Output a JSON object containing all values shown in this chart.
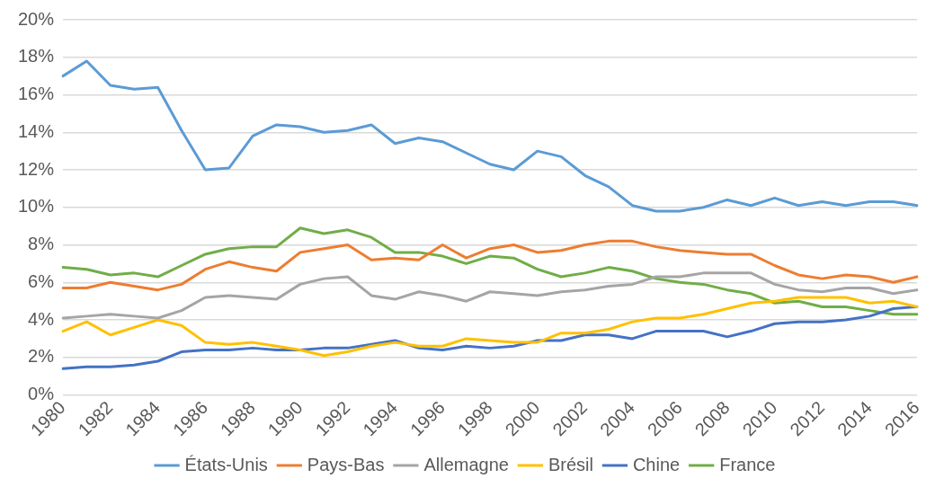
{
  "chart_data": {
    "type": "line",
    "categories": [
      "1980",
      null,
      "1982",
      null,
      "1984",
      null,
      "1986",
      null,
      "1988",
      null,
      "1990",
      null,
      "1992",
      null,
      "1994",
      null,
      "1996",
      null,
      "1998",
      null,
      "2000",
      null,
      "2002",
      null,
      "2004",
      null,
      "2006",
      null,
      "2008",
      null,
      "2010",
      null,
      "2012",
      null,
      "2014",
      null,
      "2016"
    ],
    "series": [
      {
        "name": "États-Unis",
        "color": "#5b9bd5",
        "values": [
          17.0,
          17.8,
          16.5,
          16.3,
          16.4,
          14.1,
          12.0,
          12.1,
          13.8,
          14.4,
          14.3,
          14.0,
          14.1,
          14.4,
          13.4,
          13.7,
          13.5,
          12.9,
          12.3,
          12.0,
          13.0,
          12.7,
          11.7,
          11.1,
          10.1,
          9.8,
          9.8,
          10.0,
          10.4,
          10.1,
          10.5,
          10.1,
          10.3,
          10.1,
          10.3,
          10.3,
          10.1
        ]
      },
      {
        "name": "Pays-Bas",
        "color": "#ed7d31",
        "values": [
          5.7,
          5.7,
          6.0,
          5.8,
          5.6,
          5.9,
          6.7,
          7.1,
          6.8,
          6.6,
          7.6,
          7.8,
          8.0,
          7.2,
          7.3,
          7.2,
          8.0,
          7.3,
          7.8,
          8.0,
          7.6,
          7.7,
          8.0,
          8.2,
          8.2,
          7.9,
          7.7,
          7.6,
          7.5,
          7.5,
          6.9,
          6.4,
          6.2,
          6.4,
          6.3,
          6.0,
          6.3
        ]
      },
      {
        "name": "Allemagne",
        "color": "#a5a5a5",
        "values": [
          4.1,
          4.2,
          4.3,
          4.2,
          4.1,
          4.5,
          5.2,
          5.3,
          5.2,
          5.1,
          5.9,
          6.2,
          6.3,
          5.3,
          5.1,
          5.5,
          5.3,
          5.0,
          5.5,
          5.4,
          5.3,
          5.5,
          5.6,
          5.8,
          5.9,
          6.3,
          6.3,
          6.5,
          6.5,
          6.5,
          5.9,
          5.6,
          5.5,
          5.7,
          5.7,
          5.4,
          5.6
        ]
      },
      {
        "name": "Brésil",
        "color": "#ffc000",
        "values": [
          3.4,
          3.9,
          3.2,
          3.6,
          4.0,
          3.7,
          2.8,
          2.7,
          2.8,
          2.6,
          2.4,
          2.1,
          2.3,
          2.6,
          2.8,
          2.6,
          2.6,
          3.0,
          2.9,
          2.8,
          2.8,
          3.3,
          3.3,
          3.5,
          3.9,
          4.1,
          4.1,
          4.3,
          4.6,
          4.9,
          5.0,
          5.2,
          5.2,
          5.2,
          4.9,
          5.0,
          4.7
        ]
      },
      {
        "name": "Chine",
        "color": "#4472c4",
        "values": [
          1.4,
          1.5,
          1.5,
          1.6,
          1.8,
          2.3,
          2.4,
          2.4,
          2.5,
          2.4,
          2.4,
          2.5,
          2.5,
          2.7,
          2.9,
          2.5,
          2.4,
          2.6,
          2.5,
          2.6,
          2.9,
          2.9,
          3.2,
          3.2,
          3.0,
          3.4,
          3.4,
          3.4,
          3.1,
          3.4,
          3.8,
          3.9,
          3.9,
          4.0,
          4.2,
          4.6,
          4.7
        ]
      },
      {
        "name": "France",
        "color": "#70ad47",
        "values": [
          6.8,
          6.7,
          6.4,
          6.5,
          6.3,
          6.9,
          7.5,
          7.8,
          7.9,
          7.9,
          8.9,
          8.6,
          8.8,
          8.4,
          7.6,
          7.6,
          7.4,
          7.0,
          7.4,
          7.3,
          6.7,
          6.3,
          6.5,
          6.8,
          6.6,
          6.2,
          6.0,
          5.9,
          5.6,
          5.4,
          4.9,
          5.0,
          4.7,
          4.7,
          4.5,
          4.3,
          4.3
        ]
      }
    ],
    "ylim": [
      0,
      20
    ],
    "yticks": [
      {
        "value": 0,
        "label": "0%"
      },
      {
        "value": 2,
        "label": "2%"
      },
      {
        "value": 4,
        "label": "4%"
      },
      {
        "value": 6,
        "label": "6%"
      },
      {
        "value": 8,
        "label": "8%"
      },
      {
        "value": 10,
        "label": "10%"
      },
      {
        "value": 12,
        "label": "12%"
      },
      {
        "value": 14,
        "label": "14%"
      },
      {
        "value": 16,
        "label": "16%"
      },
      {
        "value": 18,
        "label": "18%"
      },
      {
        "value": 20,
        "label": "20%"
      }
    ],
    "grid": "y",
    "legend": "bottom",
    "marker": "none",
    "line_style": "solid"
  }
}
